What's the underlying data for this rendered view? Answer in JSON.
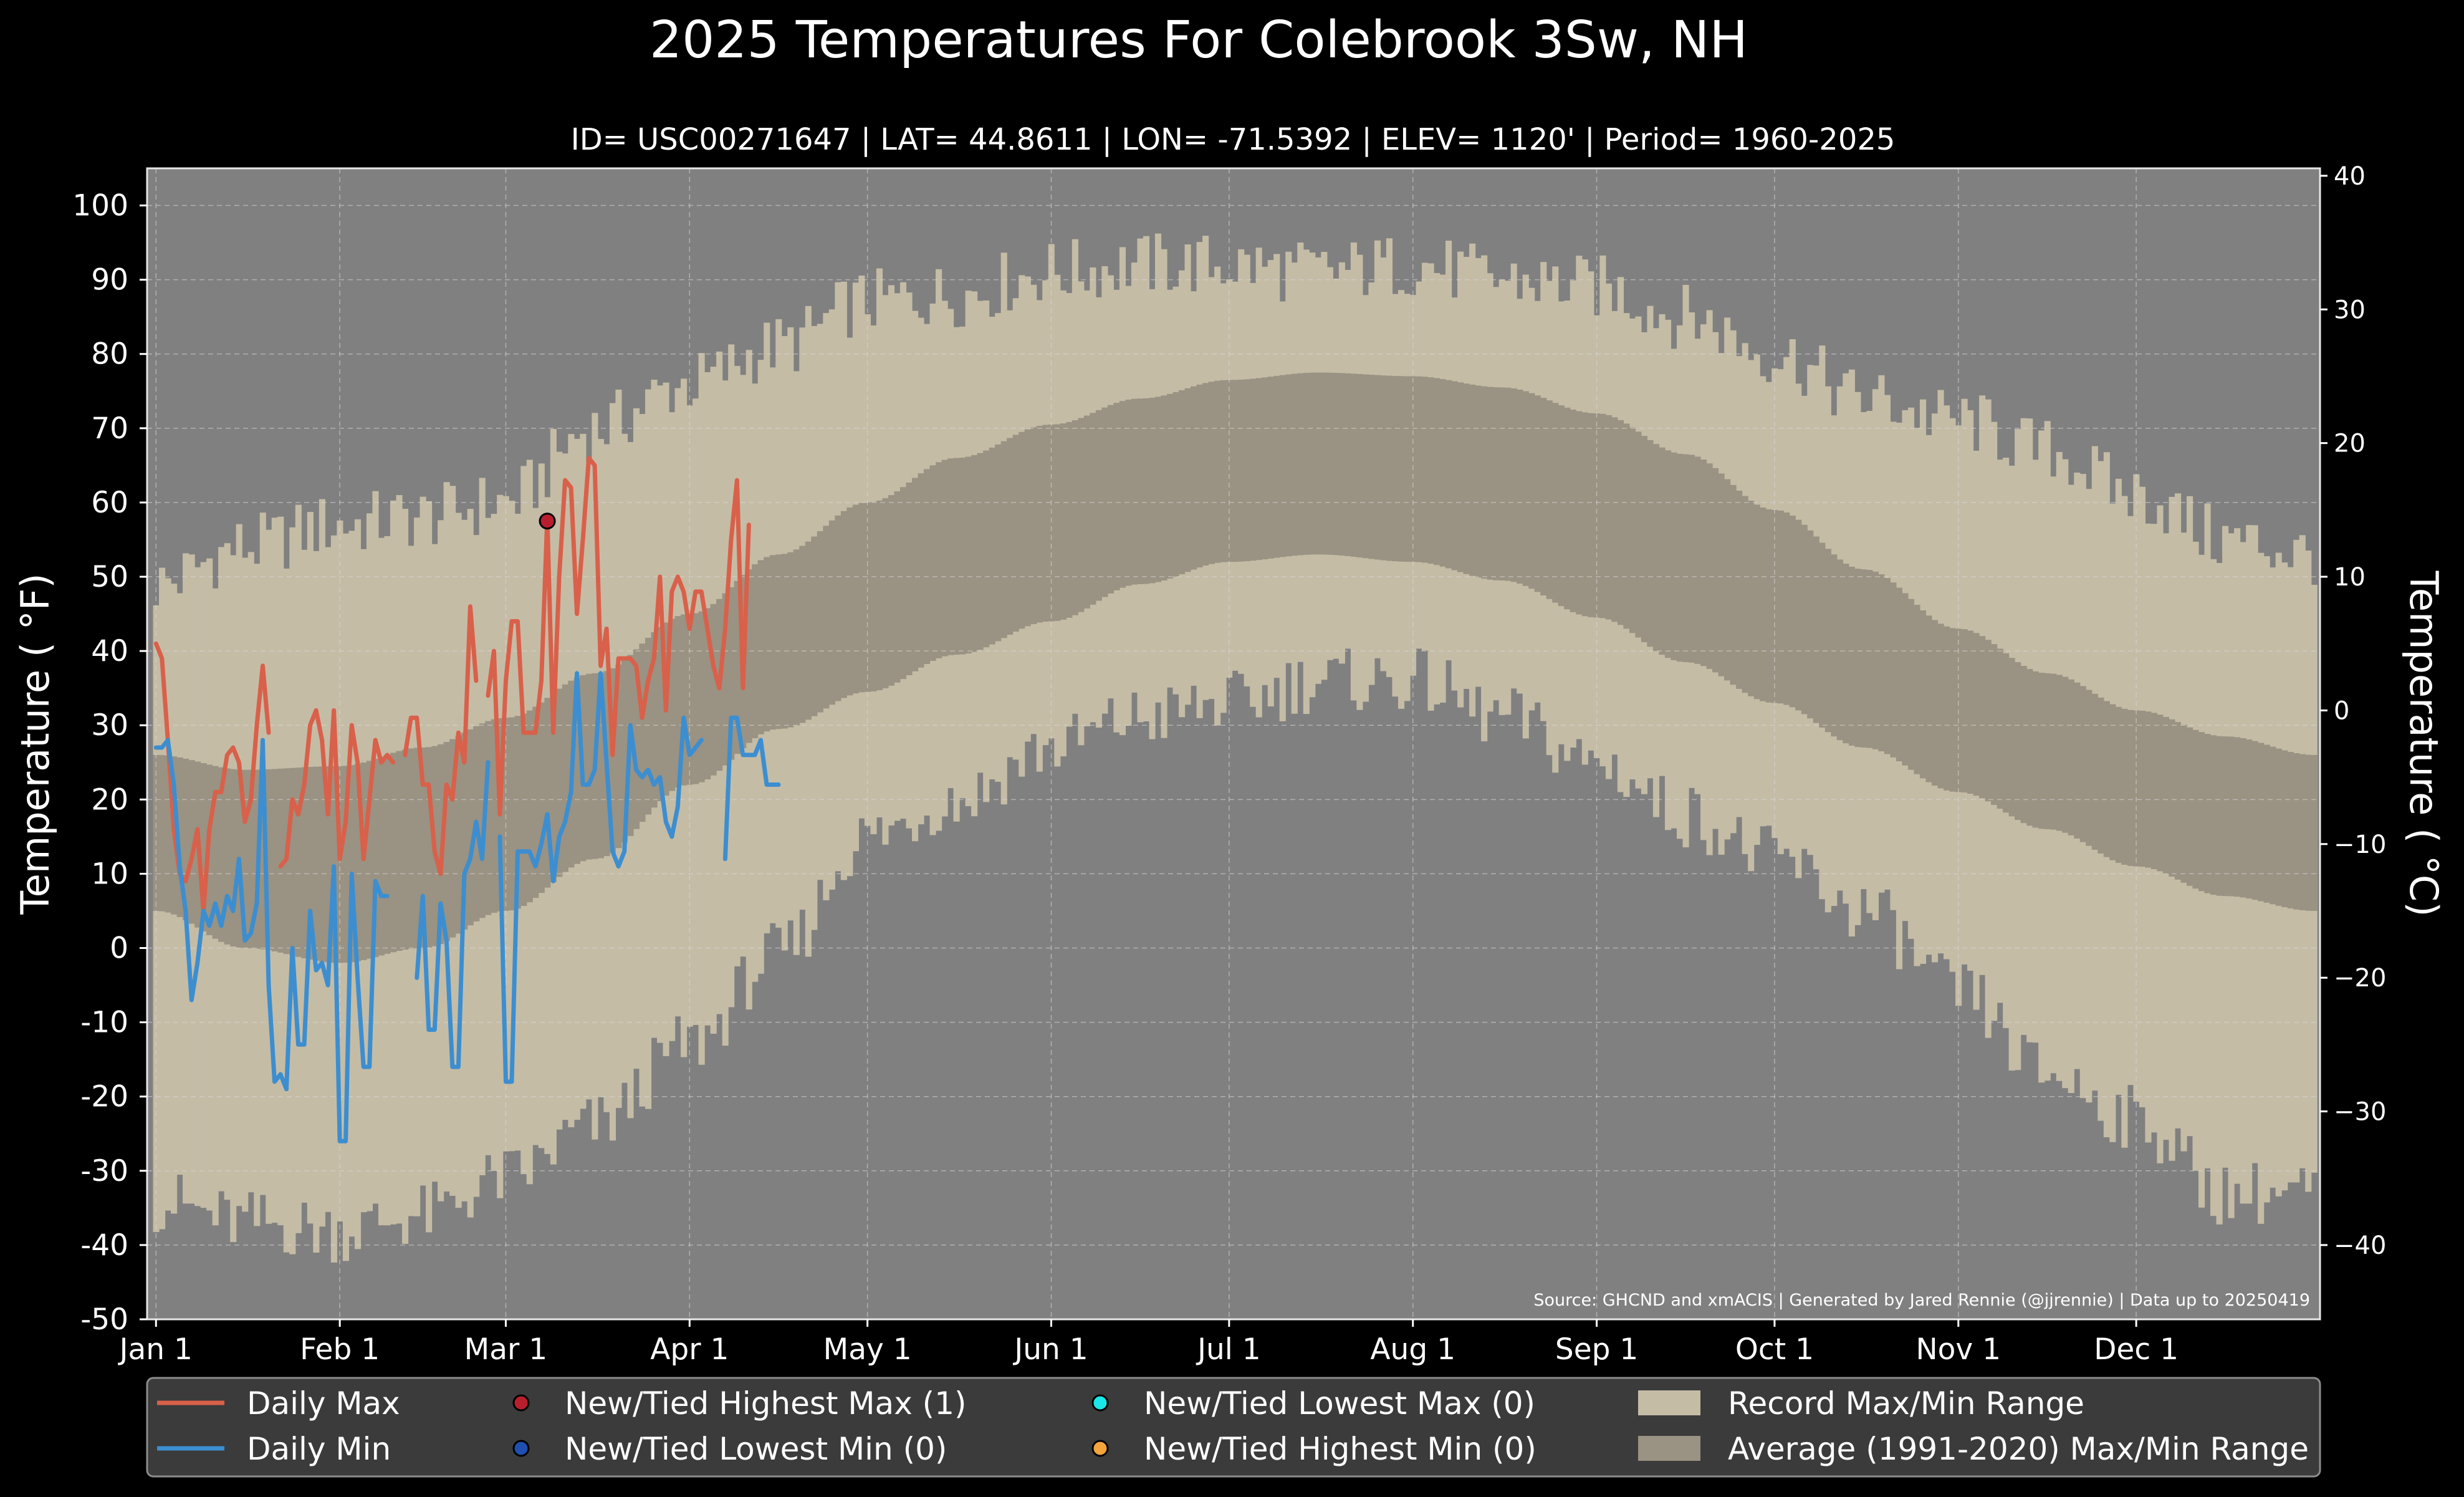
{
  "chart_data": {
    "type": "line",
    "title": "2025 Temperatures For Colebrook 3Sw, NH",
    "subtitle": "ID= USC00271647 | LAT= 44.8611 | LON= -71.5392 | ELEV= 1120' | Period= 1960-2025",
    "ylabel": "Temperature ($^\\circ$F)",
    "ylabel_display": "Temperature ( °F)",
    "ylabel_right": "Temperature ( °C)",
    "source": "Source: GHCND and xmACIS | Generated by Jared Rennie (@jjrennie) | Data up to 20250419",
    "ylim": [
      -50,
      105
    ],
    "xlim": [
      -1.5,
      365
    ],
    "y_ticks": [
      -50,
      -40,
      -30,
      -20,
      -10,
      0,
      10,
      20,
      30,
      40,
      50,
      60,
      70,
      80,
      90,
      100
    ],
    "y_ticks_right": [
      -40,
      -30,
      -20,
      -10,
      0,
      10,
      20,
      30,
      40
    ],
    "x_ticks": [
      {
        "label": "Jan 1",
        "day": 0
      },
      {
        "label": "Feb 1",
        "day": 31
      },
      {
        "label": "Mar 1",
        "day": 59
      },
      {
        "label": "Apr 1",
        "day": 90
      },
      {
        "label": "May 1",
        "day": 120
      },
      {
        "label": "Jun 1",
        "day": 151
      },
      {
        "label": "Jul 1",
        "day": 181
      },
      {
        "label": "Aug 1",
        "day": 212
      },
      {
        "label": "Sep 1",
        "day": 243
      },
      {
        "label": "Oct 1",
        "day": 273
      },
      {
        "label": "Nov 1",
        "day": 304
      },
      {
        "label": "Dec 1",
        "day": 334
      }
    ],
    "grid": true,
    "legend_position": "bottom",
    "colors": {
      "plot_bg": "#808080",
      "record": "#c5bca6",
      "average": "#9a9282",
      "daily_max": "#d9604a",
      "daily_min": "#3c8ed0",
      "highest_max": "#b81f2e",
      "lowest_min": "#1f4fb0",
      "lowest_max": "#19e8e8",
      "highest_min": "#f4a43c"
    },
    "record_max_knots": [
      [
        0,
        49
      ],
      [
        15,
        54
      ],
      [
        31,
        57
      ],
      [
        45,
        58
      ],
      [
        59,
        60
      ],
      [
        74,
        70
      ],
      [
        90,
        76
      ],
      [
        105,
        81
      ],
      [
        120,
        87
      ],
      [
        135,
        88
      ],
      [
        151,
        91
      ],
      [
        166,
        92
      ],
      [
        181,
        92
      ],
      [
        196,
        91
      ],
      [
        212,
        92
      ],
      [
        227,
        90
      ],
      [
        243,
        89
      ],
      [
        258,
        85
      ],
      [
        273,
        80
      ],
      [
        288,
        74
      ],
      [
        304,
        71
      ],
      [
        319,
        67
      ],
      [
        334,
        61
      ],
      [
        349,
        55
      ],
      [
        364,
        53
      ]
    ],
    "record_min_knots": [
      [
        0,
        -34
      ],
      [
        15,
        -37
      ],
      [
        31,
        -38
      ],
      [
        45,
        -36
      ],
      [
        59,
        -31
      ],
      [
        74,
        -24
      ],
      [
        90,
        -13
      ],
      [
        105,
        -1
      ],
      [
        120,
        15
      ],
      [
        135,
        20
      ],
      [
        151,
        27
      ],
      [
        166,
        31
      ],
      [
        181,
        33
      ],
      [
        196,
        36
      ],
      [
        212,
        36
      ],
      [
        227,
        31
      ],
      [
        243,
        25
      ],
      [
        258,
        18
      ],
      [
        273,
        12
      ],
      [
        288,
        5
      ],
      [
        304,
        -6
      ],
      [
        319,
        -17
      ],
      [
        334,
        -23
      ],
      [
        349,
        -33
      ],
      [
        364,
        -33
      ]
    ],
    "avg_max_knots": [
      [
        0,
        26
      ],
      [
        15,
        24
      ],
      [
        31,
        24.5
      ],
      [
        45,
        27
      ],
      [
        59,
        31
      ],
      [
        74,
        37
      ],
      [
        90,
        45
      ],
      [
        105,
        53
      ],
      [
        120,
        60
      ],
      [
        135,
        66
      ],
      [
        151,
        70.5
      ],
      [
        166,
        74
      ],
      [
        181,
        76.5
      ],
      [
        196,
        77.5
      ],
      [
        212,
        77
      ],
      [
        227,
        75.5
      ],
      [
        243,
        72
      ],
      [
        258,
        66.5
      ],
      [
        273,
        59
      ],
      [
        288,
        51
      ],
      [
        304,
        43
      ],
      [
        319,
        37
      ],
      [
        334,
        32
      ],
      [
        349,
        28.5
      ],
      [
        364,
        26
      ]
    ],
    "avg_min_knots": [
      [
        0,
        5
      ],
      [
        15,
        0
      ],
      [
        31,
        -2
      ],
      [
        45,
        0
      ],
      [
        59,
        5
      ],
      [
        74,
        12
      ],
      [
        90,
        22
      ],
      [
        105,
        29.5
      ],
      [
        120,
        34.5
      ],
      [
        135,
        39.5
      ],
      [
        151,
        44
      ],
      [
        166,
        49
      ],
      [
        181,
        52
      ],
      [
        196,
        53
      ],
      [
        212,
        52
      ],
      [
        227,
        49.5
      ],
      [
        243,
        44.5
      ],
      [
        258,
        38.5
      ],
      [
        273,
        33
      ],
      [
        288,
        27
      ],
      [
        304,
        21
      ],
      [
        319,
        16
      ],
      [
        334,
        11
      ],
      [
        349,
        7
      ],
      [
        364,
        5
      ]
    ],
    "x_days": [
      0,
      1,
      2,
      3,
      4,
      5,
      6,
      7,
      8,
      9,
      10,
      11,
      12,
      13,
      14,
      15,
      16,
      17,
      18,
      19,
      20,
      21,
      22,
      23,
      24,
      25,
      26,
      27,
      28,
      29,
      30,
      31,
      32,
      33,
      34,
      35,
      36,
      37,
      38,
      39,
      40,
      41,
      42,
      43,
      44,
      45,
      46,
      47,
      48,
      49,
      50,
      51,
      52,
      53,
      54,
      55,
      56,
      57,
      58,
      59,
      60,
      61,
      62,
      63,
      64,
      65,
      66,
      67,
      68,
      69,
      70,
      71,
      72,
      73,
      74,
      75,
      76,
      77,
      78,
      79,
      80,
      81,
      82,
      83,
      84,
      85,
      86,
      87,
      88,
      89,
      90,
      91,
      92,
      93,
      94,
      95,
      96,
      97,
      98,
      99,
      100,
      101,
      102,
      103,
      104,
      105,
      106,
      107,
      108
    ],
    "series": [
      {
        "name": "Daily Max",
        "values": [
          41,
          39,
          28,
          16,
          10,
          9,
          12,
          16,
          5,
          16,
          21,
          21,
          26,
          27,
          25,
          17,
          20,
          30,
          38,
          29,
          null,
          11,
          12,
          20,
          18,
          22,
          30,
          32,
          28,
          18,
          32,
          12,
          17,
          30,
          25,
          12,
          20,
          28,
          25,
          26,
          25,
          null,
          26,
          31,
          31,
          22,
          22,
          13,
          10,
          22,
          20,
          29,
          25,
          46,
          36,
          null,
          34,
          40,
          18,
          36,
          44,
          44,
          29,
          29,
          29,
          36,
          58,
          29,
          50,
          63,
          62,
          45,
          55,
          66,
          65,
          38,
          43,
          26,
          39,
          39,
          39,
          38,
          31,
          36,
          39,
          50,
          32,
          48,
          50,
          48,
          43,
          48,
          48,
          43,
          38,
          35,
          43,
          55,
          63,
          35,
          57,
          null,
          null,
          null,
          null,
          null,
          null,
          null,
          null
        ]
      },
      {
        "name": "Daily Min",
        "values": [
          27,
          27,
          28,
          22,
          11,
          5,
          -7,
          -2,
          5,
          3,
          6,
          3,
          7,
          5,
          12,
          1,
          2,
          6,
          28,
          -5,
          -18,
          -17,
          -19,
          0,
          -13,
          -13,
          5,
          -3,
          -2,
          -5,
          11,
          -26,
          -26,
          10,
          -4,
          -16,
          -16,
          9,
          7,
          7,
          null,
          null,
          null,
          null,
          -4,
          7,
          -11,
          -11,
          6,
          1,
          -16,
          -16,
          10,
          12,
          17,
          12,
          25,
          null,
          15,
          -18,
          -18,
          13,
          13,
          13,
          11,
          14,
          18,
          9,
          15,
          17,
          21,
          37,
          22,
          22,
          24,
          37,
          25,
          13,
          11,
          13,
          30,
          24,
          23,
          24,
          22,
          23,
          17,
          15,
          19,
          31,
          26,
          27,
          28,
          null,
          null,
          null,
          12,
          31,
          31,
          26,
          26,
          26,
          28,
          22,
          22,
          22,
          null,
          null,
          null
        ]
      },
      {
        "name": "New/Tied Highest Max (1)",
        "points": [
          [
            66,
            57.5
          ]
        ]
      }
    ],
    "legend": [
      {
        "label": "Daily Max",
        "kind": "line",
        "color": "#d9604a"
      },
      {
        "label": "New/Tied Highest Max (1)",
        "kind": "dot",
        "color": "#b81f2e"
      },
      {
        "label": "New/Tied Lowest Max (0)",
        "kind": "dot",
        "color": "#19e8e8"
      },
      {
        "label": "Record Max/Min Range",
        "kind": "patch",
        "color": "#c5bca6"
      },
      {
        "label": "Daily Min",
        "kind": "line",
        "color": "#3c8ed0"
      },
      {
        "label": "New/Tied Lowest Min (0)",
        "kind": "dot",
        "color": "#1f4fb0"
      },
      {
        "label": "New/Tied Highest Min (0)",
        "kind": "dot",
        "color": "#f4a43c"
      },
      {
        "label": "Average (1991-2020) Max/Min Range",
        "kind": "patch",
        "color": "#9a9282"
      }
    ]
  }
}
